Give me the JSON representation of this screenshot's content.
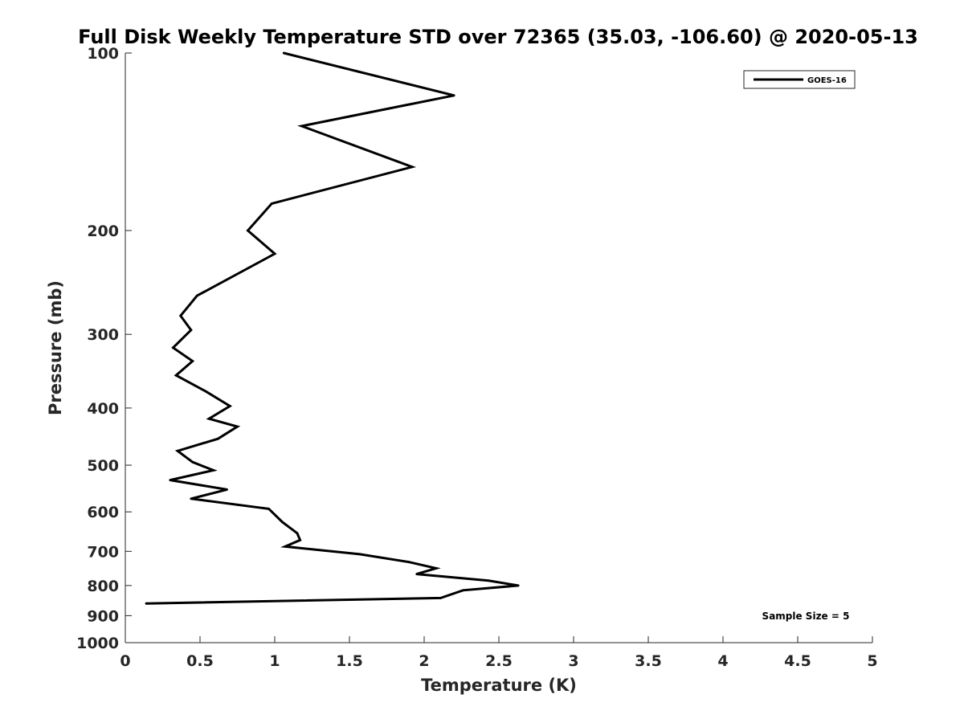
{
  "chart_data": {
    "type": "line",
    "title": "Full Disk Weekly Temperature STD over 72365 (35.03, -106.60) @ 2020-05-13",
    "xlabel": "Temperature (K)",
    "ylabel": "Pressure (mb)",
    "xlim": [
      0,
      5
    ],
    "ylim": [
      100,
      1000
    ],
    "y_scale": "log",
    "y_reversed": true,
    "grid": false,
    "legend_position": "top-right",
    "x_ticks": [
      0,
      0.5,
      1,
      1.5,
      2,
      2.5,
      3,
      3.5,
      4,
      4.5,
      5
    ],
    "x_tick_labels": [
      "0",
      "0.5",
      "1",
      "1.5",
      "2",
      "2.5",
      "3",
      "3.5",
      "4",
      "4.5",
      "5"
    ],
    "y_ticks": [
      100,
      200,
      300,
      400,
      500,
      600,
      700,
      800,
      900,
      1000
    ],
    "y_tick_labels": [
      "100",
      "200",
      "300",
      "400",
      "500",
      "600",
      "700",
      "800",
      "900",
      "1000"
    ],
    "series": [
      {
        "name": "GOES-16",
        "color": "#000000",
        "points": [
          {
            "x": 1.06,
            "y": 100
          },
          {
            "x": 2.2,
            "y": 118
          },
          {
            "x": 1.18,
            "y": 133
          },
          {
            "x": 1.92,
            "y": 156
          },
          {
            "x": 0.98,
            "y": 180
          },
          {
            "x": 0.82,
            "y": 200
          },
          {
            "x": 1.0,
            "y": 219
          },
          {
            "x": 0.48,
            "y": 258
          },
          {
            "x": 0.37,
            "y": 279
          },
          {
            "x": 0.44,
            "y": 295
          },
          {
            "x": 0.32,
            "y": 316
          },
          {
            "x": 0.45,
            "y": 333
          },
          {
            "x": 0.34,
            "y": 352
          },
          {
            "x": 0.54,
            "y": 375
          },
          {
            "x": 0.7,
            "y": 397
          },
          {
            "x": 0.56,
            "y": 417
          },
          {
            "x": 0.75,
            "y": 430
          },
          {
            "x": 0.62,
            "y": 451
          },
          {
            "x": 0.35,
            "y": 473
          },
          {
            "x": 0.45,
            "y": 494
          },
          {
            "x": 0.59,
            "y": 510
          },
          {
            "x": 0.3,
            "y": 530
          },
          {
            "x": 0.68,
            "y": 550
          },
          {
            "x": 0.44,
            "y": 570
          },
          {
            "x": 0.96,
            "y": 593
          },
          {
            "x": 1.05,
            "y": 624
          },
          {
            "x": 1.15,
            "y": 652
          },
          {
            "x": 1.17,
            "y": 670
          },
          {
            "x": 1.07,
            "y": 687
          },
          {
            "x": 1.57,
            "y": 708
          },
          {
            "x": 1.9,
            "y": 730
          },
          {
            "x": 2.08,
            "y": 748
          },
          {
            "x": 1.95,
            "y": 765
          },
          {
            "x": 2.43,
            "y": 785
          },
          {
            "x": 2.63,
            "y": 800
          },
          {
            "x": 2.26,
            "y": 815
          },
          {
            "x": 2.11,
            "y": 840
          },
          {
            "x": 0.14,
            "y": 858
          }
        ]
      }
    ],
    "annotations": [
      "Sample Size = 5"
    ]
  }
}
